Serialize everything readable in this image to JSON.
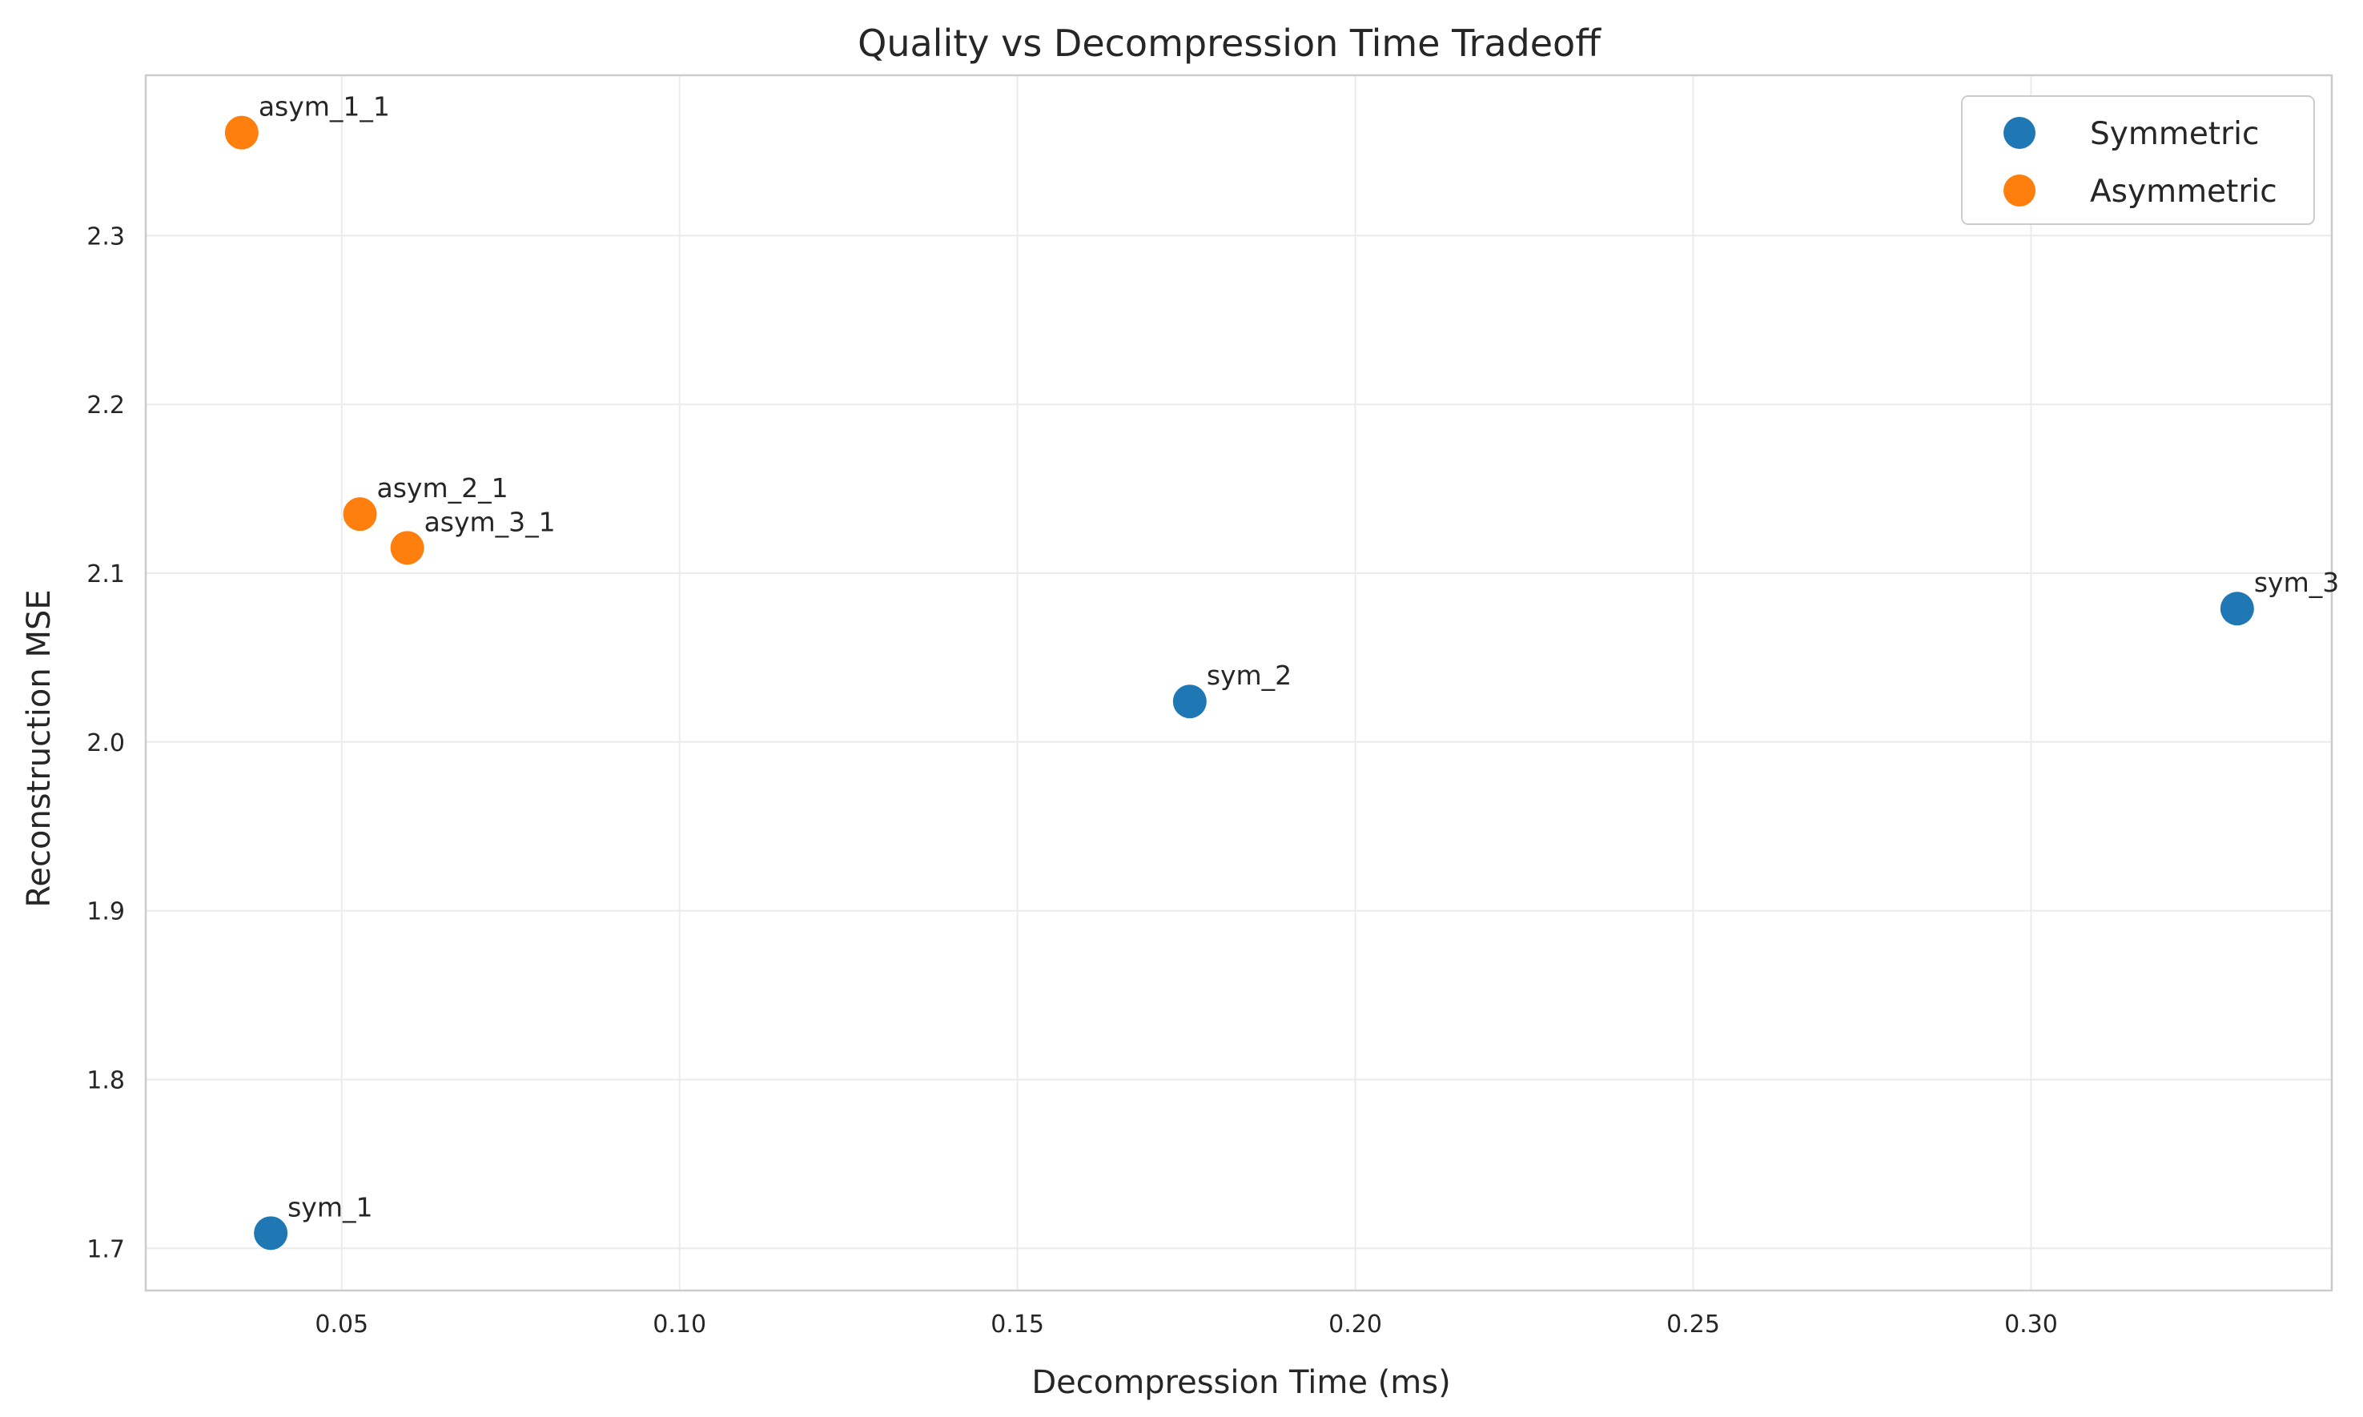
{
  "chart_data": {
    "type": "scatter",
    "title": "Quality vs Decompression Time Tradeoff",
    "xlabel": "Decompression Time (ms)",
    "ylabel": "Reconstruction MSE",
    "xlim": [
      0.021,
      0.3445
    ],
    "ylim": [
      1.675,
      2.395
    ],
    "xticks": [
      0.05,
      0.1,
      0.15,
      0.2,
      0.25,
      0.3
    ],
    "xtick_labels": [
      "0.05",
      "0.10",
      "0.15",
      "0.20",
      "0.25",
      "0.30"
    ],
    "yticks": [
      1.7,
      1.8,
      1.9,
      2.0,
      2.1,
      2.2,
      2.3
    ],
    "ytick_labels": [
      "1.7",
      "1.8",
      "1.9",
      "2.0",
      "2.1",
      "2.2",
      "2.3"
    ],
    "grid": true,
    "legend_position": "top-right",
    "series": [
      {
        "name": "Symmetric",
        "color": "#1f77b4",
        "points": [
          {
            "x": 0.0395,
            "y": 1.709,
            "label": "sym_1"
          },
          {
            "x": 0.1755,
            "y": 2.024,
            "label": "sym_2"
          },
          {
            "x": 0.3305,
            "y": 2.079,
            "label": "sym_3"
          }
        ]
      },
      {
        "name": "Asymmetric",
        "color": "#ff7f0e",
        "points": [
          {
            "x": 0.0352,
            "y": 2.361,
            "label": "asym_1_1"
          },
          {
            "x": 0.0527,
            "y": 2.135,
            "label": "asym_2_1"
          },
          {
            "x": 0.0597,
            "y": 2.115,
            "label": "asym_3_1"
          }
        ]
      }
    ]
  }
}
